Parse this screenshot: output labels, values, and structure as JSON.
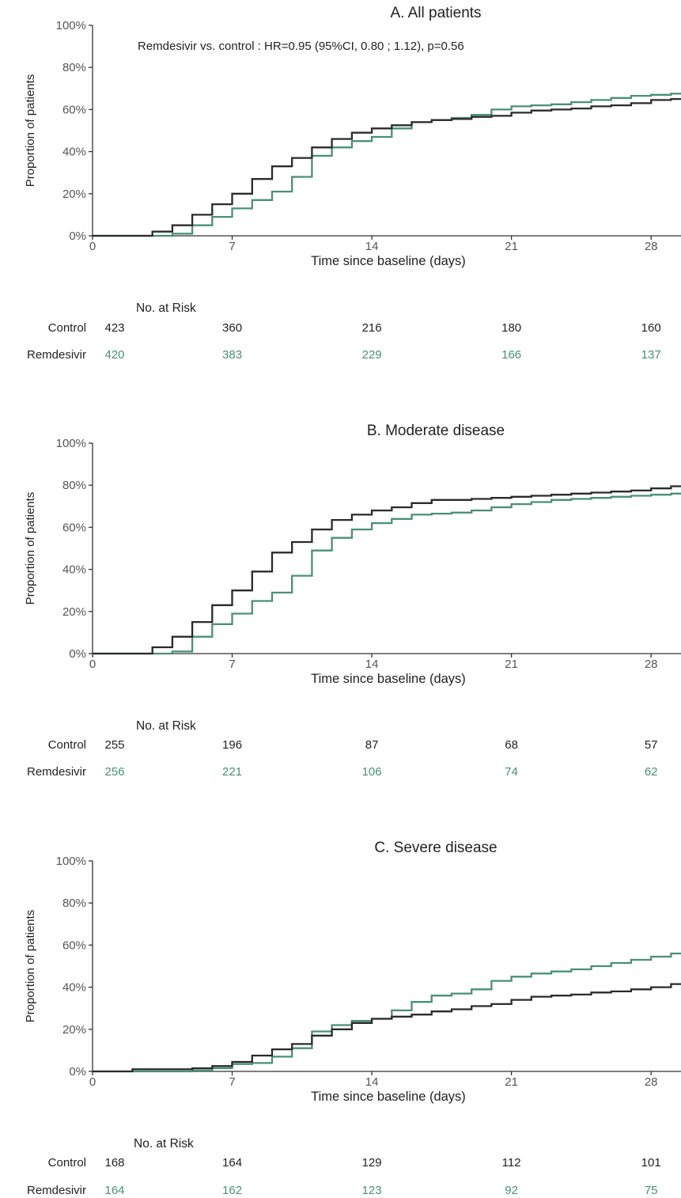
{
  "colors": {
    "control": "#2b2b2b",
    "remdesivir": "#4a9078"
  },
  "risk_label": "No. at Risk",
  "chart_data": [
    {
      "type": "line",
      "step": true,
      "title": "A. All patients",
      "annotation": "Remdesivir vs. control : HR=0.95 (95%CI, 0.80 ; 1.12), p=0.56",
      "xlabel": "Time since baseline (days)",
      "ylabel": "Proportion of patients",
      "xlim": [
        0,
        29.5
      ],
      "ylim": [
        0,
        100
      ],
      "xticks": [
        "0",
        "7",
        "14",
        "21",
        "28"
      ],
      "yticks": [
        "0%",
        "20%",
        "40%",
        "60%",
        "80%",
        "100%"
      ],
      "series": [
        {
          "name": "Control",
          "x": [
            0,
            3,
            4,
            5,
            6,
            7,
            8,
            9,
            10,
            11,
            12,
            13,
            14,
            15,
            16,
            17,
            18,
            19,
            20,
            21,
            22,
            23,
            24,
            25,
            26,
            27,
            28,
            29
          ],
          "y": [
            0,
            2,
            5,
            10,
            15,
            20,
            27,
            33,
            37,
            42,
            46,
            49,
            51,
            52.5,
            54,
            55,
            55.5,
            56.5,
            57,
            58.5,
            59.5,
            60,
            60.5,
            61.5,
            62,
            63,
            64.5,
            65
          ]
        },
        {
          "name": "Remdesivir",
          "x": [
            0,
            4,
            5,
            6,
            7,
            8,
            9,
            10,
            11,
            12,
            13,
            14,
            15,
            16,
            17,
            18,
            19,
            20,
            21,
            22,
            23,
            24,
            25,
            26,
            27,
            28,
            29
          ],
          "y": [
            0,
            1,
            5,
            9,
            13,
            17,
            21,
            28,
            38,
            42,
            45,
            47,
            51,
            54,
            55,
            56,
            57.5,
            60,
            61.5,
            62,
            62.5,
            63.5,
            64.5,
            65.5,
            66.5,
            67,
            67.5
          ]
        }
      ],
      "risk": {
        "times": [
          0,
          7,
          14,
          21,
          28
        ],
        "rows": [
          {
            "name": "Control",
            "values": [
              "423",
              "360",
              "216",
              "180",
              "160"
            ]
          },
          {
            "name": "Remdesivir",
            "values": [
              "420",
              "383",
              "229",
              "166",
              "137"
            ]
          }
        ]
      }
    },
    {
      "type": "line",
      "step": true,
      "title": "B. Moderate disease",
      "annotation": "",
      "xlabel": "Time since baseline (days)",
      "ylabel": "Proportion of patients",
      "xlim": [
        0,
        29.5
      ],
      "ylim": [
        0,
        100
      ],
      "xticks": [
        "0",
        "7",
        "14",
        "21",
        "28"
      ],
      "yticks": [
        "0%",
        "20%",
        "40%",
        "60%",
        "80%",
        "100%"
      ],
      "series": [
        {
          "name": "Control",
          "x": [
            0,
            3,
            4,
            5,
            6,
            7,
            8,
            9,
            10,
            11,
            12,
            13,
            14,
            15,
            16,
            17,
            18,
            19,
            20,
            21,
            22,
            23,
            24,
            25,
            26,
            27,
            28,
            29
          ],
          "y": [
            0,
            3,
            8,
            15,
            23,
            30,
            39,
            48,
            53,
            59,
            63.5,
            66,
            68,
            69.5,
            71.5,
            73,
            73,
            73.5,
            74,
            74.5,
            75,
            75.5,
            76,
            76.5,
            77,
            77.5,
            78.5,
            79.5
          ]
        },
        {
          "name": "Remdesivir",
          "x": [
            0,
            4,
            5,
            6,
            7,
            8,
            9,
            10,
            11,
            12,
            13,
            14,
            15,
            16,
            17,
            18,
            19,
            20,
            21,
            22,
            23,
            24,
            25,
            26,
            27,
            28,
            29
          ],
          "y": [
            0,
            1,
            8,
            14,
            19,
            25,
            29,
            37,
            49,
            55,
            59,
            62,
            64,
            66,
            66.5,
            67,
            68,
            69.5,
            71,
            72,
            73,
            73.5,
            74,
            74.5,
            75,
            75.5,
            76
          ]
        }
      ],
      "risk": {
        "times": [
          0,
          7,
          14,
          21,
          28
        ],
        "rows": [
          {
            "name": "Control",
            "values": [
              "255",
              "196",
              "87",
              "68",
              "57"
            ]
          },
          {
            "name": "Remdesivir",
            "values": [
              "256",
              "221",
              "106",
              "74",
              "62"
            ]
          }
        ]
      }
    },
    {
      "type": "line",
      "step": true,
      "title": "C. Severe disease",
      "annotation": "",
      "xlabel": "Time since baseline (days)",
      "ylabel": "Proportion of patients",
      "xlim": [
        0,
        29.5
      ],
      "ylim": [
        0,
        100
      ],
      "xticks": [
        "0",
        "7",
        "14",
        "21",
        "28"
      ],
      "yticks": [
        "0%",
        "20%",
        "40%",
        "60%",
        "80%",
        "100%"
      ],
      "series": [
        {
          "name": "Control",
          "x": [
            0,
            2,
            5,
            6,
            7,
            8,
            9,
            10,
            11,
            12,
            13,
            14,
            15,
            16,
            17,
            18,
            19,
            20,
            21,
            22,
            23,
            24,
            25,
            26,
            27,
            28,
            29
          ],
          "y": [
            0,
            1,
            1.5,
            2.5,
            4.5,
            7.5,
            10.5,
            13,
            17,
            20,
            23,
            25,
            26,
            27,
            28.5,
            29.5,
            31,
            32,
            34,
            35.5,
            36,
            36.5,
            37.5,
            38,
            39,
            40,
            41.5
          ]
        },
        {
          "name": "Remdesivir",
          "x": [
            0,
            5,
            6,
            7,
            8,
            9,
            10,
            11,
            12,
            13,
            14,
            15,
            16,
            17,
            18,
            19,
            20,
            21,
            22,
            23,
            24,
            25,
            26,
            27,
            28,
            29
          ],
          "y": [
            0,
            0.5,
            1.5,
            3.5,
            4,
            7,
            11,
            19,
            22,
            24,
            25,
            29,
            33,
            36,
            37,
            39,
            43,
            45,
            46.5,
            47.5,
            48.5,
            50,
            51.5,
            53,
            54.5,
            56
          ]
        }
      ],
      "risk": {
        "times": [
          0,
          7,
          14,
          21,
          28
        ],
        "rows": [
          {
            "name": "Control",
            "values": [
              "168",
              "164",
              "129",
              "112",
              "101"
            ]
          },
          {
            "name": "Remdesivir",
            "values": [
              "164",
              "162",
              "123",
              "92",
              "75"
            ]
          }
        ]
      }
    }
  ]
}
